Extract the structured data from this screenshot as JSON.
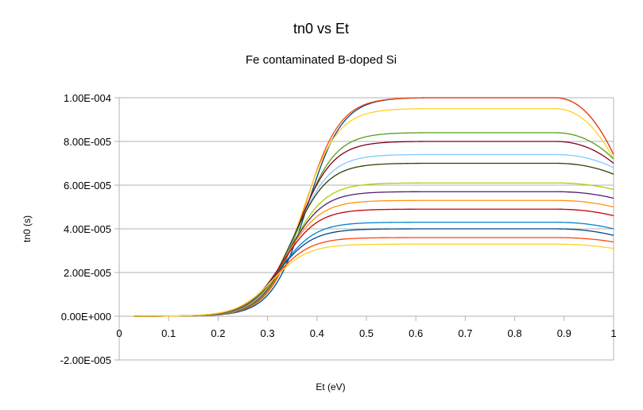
{
  "chart_data": {
    "type": "line",
    "title": "tn0 vs Et",
    "subtitle": "Fe contaminated B-doped Si",
    "xlabel": "Et (eV)",
    "ylabel": "tn0 (s)",
    "xlim": [
      0,
      1
    ],
    "ylim": [
      -2e-05,
      0.0001
    ],
    "x_ticks": [
      0,
      0.1,
      0.2,
      0.3,
      0.4,
      0.5,
      0.6,
      0.7,
      0.8,
      0.9,
      1
    ],
    "x_tick_labels": [
      "0",
      "0.1",
      "0.2",
      "0.3",
      "0.4",
      "0.5",
      "0.6",
      "0.7",
      "0.8",
      "0.9",
      "1"
    ],
    "y_ticks": [
      -2e-05,
      0,
      2e-05,
      4e-05,
      6e-05,
      8e-05,
      0.0001
    ],
    "y_tick_labels": [
      "-2.00E-005",
      "0.00E+000",
      "2.00E-005",
      "4.00E-005",
      "6.00E-005",
      "8.00E-005",
      "1.00E-004"
    ],
    "grid": "horizontal",
    "legend": "none",
    "series": [
      {
        "color": "#004586",
        "plateau": 0.0001,
        "midpoint": 0.38,
        "tail_end": 7.4e-05
      },
      {
        "color": "#ff420e",
        "plateau": 0.0001,
        "midpoint": 0.375,
        "tail_end": 7.4e-05
      },
      {
        "color": "#ffd320",
        "plateau": 9.5e-05,
        "midpoint": 0.37,
        "tail_end": 7.2e-05
      },
      {
        "color": "#579d1c",
        "plateau": 8.4e-05,
        "midpoint": 0.365,
        "tail_end": 7.2e-05
      },
      {
        "color": "#7e0021",
        "plateau": 8e-05,
        "midpoint": 0.36,
        "tail_end": 7e-05
      },
      {
        "color": "#83caff",
        "plateau": 7.4e-05,
        "midpoint": 0.355,
        "tail_end": 6.8e-05
      },
      {
        "color": "#314004",
        "plateau": 7e-05,
        "midpoint": 0.35,
        "tail_end": 6.5e-05
      },
      {
        "color": "#aecf00",
        "plateau": 6.1e-05,
        "midpoint": 0.345,
        "tail_end": 5.8e-05
      },
      {
        "color": "#4b1f6f",
        "plateau": 5.7e-05,
        "midpoint": 0.34,
        "tail_end": 5.4e-05
      },
      {
        "color": "#ff950e",
        "plateau": 5.3e-05,
        "midpoint": 0.335,
        "tail_end": 5e-05
      },
      {
        "color": "#c5000b",
        "plateau": 4.9e-05,
        "midpoint": 0.33,
        "tail_end": 4.6e-05
      },
      {
        "color": "#0084d1",
        "plateau": 4.3e-05,
        "midpoint": 0.325,
        "tail_end": 4e-05
      },
      {
        "color": "#004586",
        "plateau": 4e-05,
        "midpoint": 0.32,
        "tail_end": 3.7e-05
      },
      {
        "color": "#ff420e",
        "plateau": 3.6e-05,
        "midpoint": 0.315,
        "tail_end": 3.4e-05
      },
      {
        "color": "#ffd320",
        "plateau": 3.3e-05,
        "midpoint": 0.31,
        "tail_end": 3.1e-05
      }
    ]
  }
}
